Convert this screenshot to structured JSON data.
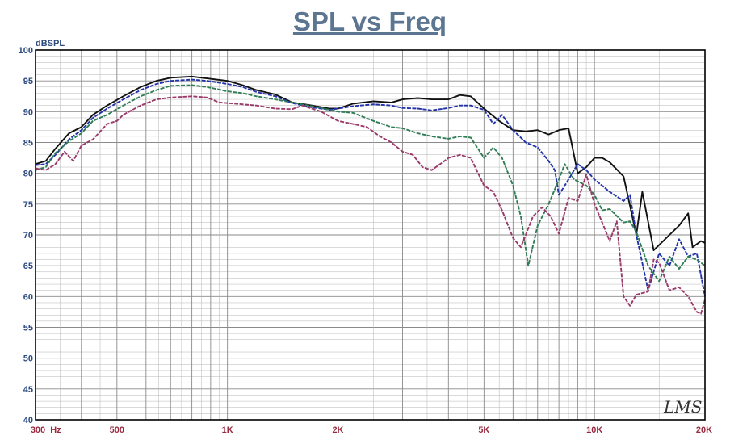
{
  "chart_data": {
    "type": "line",
    "title": "SPL vs Freq",
    "ylabel": "dBSPL",
    "xlabel": "",
    "x_scale": "log",
    "xlim": [
      300,
      20000
    ],
    "ylim": [
      40,
      100
    ],
    "grid": true,
    "watermark": "LMS",
    "y_ticks": [
      "40",
      "45",
      "50",
      "55",
      "60",
      "65",
      "70",
      "75",
      "80",
      "85",
      "90",
      "95",
      "100"
    ],
    "x_ticks": [
      {
        "value": 300,
        "label": "300"
      },
      {
        "value": 500,
        "label": "500"
      },
      {
        "value": 1000,
        "label": "1K"
      },
      {
        "value": 2000,
        "label": "2K"
      },
      {
        "value": 5000,
        "label": "5K"
      },
      {
        "value": 10000,
        "label": "10K"
      },
      {
        "value": 20000,
        "label": "20K"
      }
    ],
    "x_unit": "Hz",
    "colors": {
      "title": "#5c7590",
      "axis_y": "#2c4a80",
      "axis_x": "#9a2a40",
      "grid": "#b4b4b4",
      "frame": "#000000"
    },
    "series": [
      {
        "color": "#111111",
        "dash": "solid",
        "points": [
          [
            300,
            81.5
          ],
          [
            320,
            82
          ],
          [
            340,
            84
          ],
          [
            370,
            86.5
          ],
          [
            400,
            87.5
          ],
          [
            430,
            89.5
          ],
          [
            470,
            91
          ],
          [
            520,
            92.5
          ],
          [
            580,
            94
          ],
          [
            640,
            95
          ],
          [
            700,
            95.5
          ],
          [
            800,
            95.7
          ],
          [
            880,
            95.4
          ],
          [
            1000,
            95
          ],
          [
            1100,
            94.3
          ],
          [
            1200,
            93.5
          ],
          [
            1350,
            92.8
          ],
          [
            1500,
            91.5
          ],
          [
            1700,
            91
          ],
          [
            1900,
            90.5
          ],
          [
            2000,
            90.5
          ],
          [
            2200,
            91.3
          ],
          [
            2500,
            91.7
          ],
          [
            2800,
            91.5
          ],
          [
            3000,
            92
          ],
          [
            3300,
            92.2
          ],
          [
            3600,
            92
          ],
          [
            4000,
            92
          ],
          [
            4300,
            92.7
          ],
          [
            4600,
            92.5
          ],
          [
            5000,
            90.5
          ],
          [
            5500,
            88.5
          ],
          [
            6000,
            87
          ],
          [
            6500,
            86.8
          ],
          [
            7000,
            87
          ],
          [
            7500,
            86.3
          ],
          [
            8000,
            87
          ],
          [
            8500,
            87.3
          ],
          [
            9000,
            80
          ],
          [
            9500,
            81
          ],
          [
            10000,
            82.5
          ],
          [
            10500,
            82.5
          ],
          [
            11000,
            81.8
          ],
          [
            12000,
            79.5
          ],
          [
            13000,
            70
          ],
          [
            13500,
            77
          ],
          [
            14500,
            67.5
          ],
          [
            16000,
            70
          ],
          [
            17000,
            71.5
          ],
          [
            18000,
            73.5
          ],
          [
            18500,
            68
          ],
          [
            19500,
            69
          ],
          [
            20000,
            68.7
          ]
        ]
      },
      {
        "color": "#2233aa",
        "dash": "dashed",
        "points": [
          [
            300,
            81.3
          ],
          [
            320,
            81.5
          ],
          [
            340,
            83
          ],
          [
            370,
            85.5
          ],
          [
            400,
            87
          ],
          [
            430,
            89
          ],
          [
            470,
            90.5
          ],
          [
            520,
            92
          ],
          [
            580,
            93.5
          ],
          [
            640,
            94.5
          ],
          [
            700,
            95
          ],
          [
            800,
            95.2
          ],
          [
            880,
            95
          ],
          [
            1000,
            94.5
          ],
          [
            1100,
            94
          ],
          [
            1200,
            93.2
          ],
          [
            1350,
            92.5
          ],
          [
            1500,
            91.4
          ],
          [
            1700,
            90.7
          ],
          [
            1900,
            90.3
          ],
          [
            2000,
            90.5
          ],
          [
            2200,
            90.9
          ],
          [
            2500,
            91.2
          ],
          [
            2800,
            91
          ],
          [
            3000,
            90.6
          ],
          [
            3300,
            90.5
          ],
          [
            3600,
            90.2
          ],
          [
            4000,
            90.6
          ],
          [
            4300,
            91
          ],
          [
            4600,
            91
          ],
          [
            5000,
            90.3
          ],
          [
            5300,
            88
          ],
          [
            5600,
            89.5
          ],
          [
            6000,
            87
          ],
          [
            6500,
            85
          ],
          [
            7000,
            84.2
          ],
          [
            7500,
            82
          ],
          [
            7800,
            80.5
          ],
          [
            8000,
            76.5
          ],
          [
            8500,
            79
          ],
          [
            9000,
            81.5
          ],
          [
            9500,
            80.5
          ],
          [
            10000,
            79
          ],
          [
            11000,
            77
          ],
          [
            12000,
            75.5
          ],
          [
            12500,
            76.5
          ],
          [
            13000,
            70
          ],
          [
            14000,
            61
          ],
          [
            15000,
            67
          ],
          [
            16000,
            65
          ],
          [
            17000,
            69.3
          ],
          [
            18000,
            66.5
          ],
          [
            19000,
            67
          ],
          [
            20000,
            60
          ]
        ]
      },
      {
        "color": "#2e7d54",
        "dash": "dashed",
        "points": [
          [
            300,
            80.5
          ],
          [
            320,
            81
          ],
          [
            340,
            83.3
          ],
          [
            370,
            85.2
          ],
          [
            400,
            86.5
          ],
          [
            430,
            88.5
          ],
          [
            470,
            89.5
          ],
          [
            520,
            91
          ],
          [
            580,
            92.5
          ],
          [
            640,
            93.5
          ],
          [
            700,
            94.2
          ],
          [
            800,
            94.3
          ],
          [
            880,
            94
          ],
          [
            1000,
            93.3
          ],
          [
            1100,
            93
          ],
          [
            1200,
            92.5
          ],
          [
            1350,
            92
          ],
          [
            1500,
            91.5
          ],
          [
            1700,
            90.9
          ],
          [
            1900,
            90.3
          ],
          [
            2000,
            90
          ],
          [
            2200,
            89.8
          ],
          [
            2500,
            88.5
          ],
          [
            2800,
            87.5
          ],
          [
            3000,
            87.3
          ],
          [
            3300,
            86.5
          ],
          [
            3600,
            86
          ],
          [
            4000,
            85.6
          ],
          [
            4300,
            86
          ],
          [
            4600,
            85.8
          ],
          [
            5000,
            82.5
          ],
          [
            5300,
            84.2
          ],
          [
            5600,
            82.5
          ],
          [
            6000,
            78
          ],
          [
            6300,
            73
          ],
          [
            6600,
            65
          ],
          [
            7000,
            71.5
          ],
          [
            7500,
            75
          ],
          [
            8000,
            79
          ],
          [
            8300,
            81.5
          ],
          [
            8800,
            79
          ],
          [
            9500,
            78
          ],
          [
            10000,
            76.5
          ],
          [
            10500,
            74
          ],
          [
            11000,
            74.2
          ],
          [
            12000,
            72
          ],
          [
            12500,
            72.2
          ],
          [
            13000,
            70.5
          ],
          [
            14000,
            65
          ],
          [
            15000,
            62.5
          ],
          [
            16000,
            66.5
          ],
          [
            17000,
            64.5
          ],
          [
            18000,
            66.5
          ],
          [
            19000,
            66
          ],
          [
            20000,
            65
          ]
        ]
      },
      {
        "color": "#9a3a6a",
        "dash": "dashed",
        "points": [
          [
            300,
            80.8
          ],
          [
            320,
            80.5
          ],
          [
            340,
            81.5
          ],
          [
            360,
            83.5
          ],
          [
            380,
            82
          ],
          [
            400,
            84.5
          ],
          [
            430,
            85.5
          ],
          [
            470,
            88
          ],
          [
            500,
            88.5
          ],
          [
            520,
            89.5
          ],
          [
            580,
            91
          ],
          [
            640,
            92
          ],
          [
            700,
            92.3
          ],
          [
            800,
            92.5
          ],
          [
            880,
            92.3
          ],
          [
            950,
            91.5
          ],
          [
            1050,
            91.3
          ],
          [
            1200,
            91
          ],
          [
            1350,
            90.5
          ],
          [
            1500,
            90.4
          ],
          [
            1600,
            91
          ],
          [
            1800,
            90
          ],
          [
            2000,
            88.5
          ],
          [
            2200,
            88
          ],
          [
            2400,
            87.5
          ],
          [
            2600,
            86
          ],
          [
            2800,
            85
          ],
          [
            3000,
            83.5
          ],
          [
            3200,
            83
          ],
          [
            3400,
            81
          ],
          [
            3600,
            80.5
          ],
          [
            3800,
            81.5
          ],
          [
            4000,
            82.5
          ],
          [
            4300,
            83
          ],
          [
            4600,
            82.5
          ],
          [
            5000,
            78
          ],
          [
            5300,
            77
          ],
          [
            5600,
            74
          ],
          [
            6000,
            69.5
          ],
          [
            6300,
            68
          ],
          [
            6800,
            73
          ],
          [
            7200,
            74.5
          ],
          [
            7600,
            73
          ],
          [
            8000,
            70.2
          ],
          [
            8500,
            76
          ],
          [
            9000,
            75.5
          ],
          [
            9500,
            79.8
          ],
          [
            10000,
            75
          ],
          [
            10500,
            72
          ],
          [
            11000,
            69
          ],
          [
            11500,
            72.2
          ],
          [
            12000,
            60
          ],
          [
            12500,
            58.5
          ],
          [
            13000,
            60.3
          ],
          [
            14000,
            60.8
          ],
          [
            14500,
            66
          ],
          [
            15000,
            65.5
          ],
          [
            16000,
            61
          ],
          [
            17000,
            61.5
          ],
          [
            18000,
            60
          ],
          [
            19000,
            57.5
          ],
          [
            19500,
            57.2
          ],
          [
            20000,
            59.5
          ]
        ]
      }
    ]
  }
}
